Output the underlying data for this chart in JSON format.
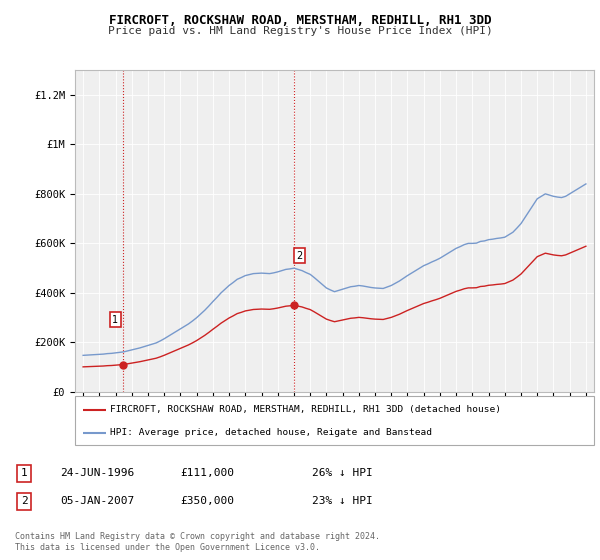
{
  "title": "FIRCROFT, ROCKSHAW ROAD, MERSTHAM, REDHILL, RH1 3DD",
  "subtitle": "Price paid vs. HM Land Registry's House Price Index (HPI)",
  "ylabel_ticks": [
    "£0",
    "£200K",
    "£400K",
    "£600K",
    "£800K",
    "£1M",
    "£1.2M"
  ],
  "ytick_values": [
    0,
    200000,
    400000,
    600000,
    800000,
    1000000,
    1200000
  ],
  "ylim": [
    0,
    1300000
  ],
  "xlim_start": 1993.5,
  "xlim_end": 2025.5,
  "hpi_line_color": "#7799cc",
  "price_line_color": "#cc2222",
  "dashed_line_color": "#cc2222",
  "background_color": "#ffffff",
  "plot_bg_color": "#efefef",
  "grid_color": "#ffffff",
  "sale1_x": 1996.48,
  "sale1_y": 111000,
  "sale2_x": 2007.02,
  "sale2_y": 350000,
  "legend_red_label": "FIRCROFT, ROCKSHAW ROAD, MERSTHAM, REDHILL, RH1 3DD (detached house)",
  "legend_blue_label": "HPI: Average price, detached house, Reigate and Banstead",
  "annotation1_label": "1",
  "annotation2_label": "2",
  "note1_date": "24-JUN-1996",
  "note1_price": "£111,000",
  "note1_hpi": "26% ↓ HPI",
  "note2_date": "05-JAN-2007",
  "note2_price": "£350,000",
  "note2_hpi": "23% ↓ HPI",
  "copyright_text": "Contains HM Land Registry data © Crown copyright and database right 2024.\nThis data is licensed under the Open Government Licence v3.0.",
  "hpi_data_x": [
    1994,
    1994.25,
    1994.5,
    1994.75,
    1995,
    1995.25,
    1995.5,
    1995.75,
    1996,
    1996.25,
    1996.5,
    1996.75,
    1997,
    1997.25,
    1997.5,
    1997.75,
    1998,
    1998.25,
    1998.5,
    1998.75,
    1999,
    1999.25,
    1999.5,
    1999.75,
    2000,
    2000.25,
    2000.5,
    2000.75,
    2001,
    2001.25,
    2001.5,
    2001.75,
    2002,
    2002.25,
    2002.5,
    2002.75,
    2003,
    2003.25,
    2003.5,
    2003.75,
    2004,
    2004.25,
    2004.5,
    2004.75,
    2005,
    2005.25,
    2005.5,
    2005.75,
    2006,
    2006.25,
    2006.5,
    2006.75,
    2007,
    2007.25,
    2007.5,
    2007.75,
    2008,
    2008.25,
    2008.5,
    2008.75,
    2009,
    2009.25,
    2009.5,
    2009.75,
    2010,
    2010.25,
    2010.5,
    2010.75,
    2011,
    2011.25,
    2011.5,
    2011.75,
    2012,
    2012.25,
    2012.5,
    2012.75,
    2013,
    2013.25,
    2013.5,
    2013.75,
    2014,
    2014.25,
    2014.5,
    2014.75,
    2015,
    2015.25,
    2015.5,
    2015.75,
    2016,
    2016.25,
    2016.5,
    2016.75,
    2017,
    2017.25,
    2017.5,
    2017.75,
    2018,
    2018.25,
    2018.5,
    2018.75,
    2019,
    2019.25,
    2019.5,
    2019.75,
    2020,
    2020.25,
    2020.5,
    2020.75,
    2021,
    2021.25,
    2021.5,
    2021.75,
    2022,
    2022.25,
    2022.5,
    2022.75,
    2023,
    2023.25,
    2023.5,
    2023.75,
    2024,
    2024.25,
    2024.5,
    2024.75,
    2025
  ],
  "hpi_data_y": [
    148000,
    149000,
    150000,
    151000,
    152000,
    153000,
    155000,
    156000,
    158000,
    160000,
    162000,
    166000,
    170000,
    174000,
    178000,
    183000,
    188000,
    193000,
    198000,
    206000,
    215000,
    225000,
    235000,
    245000,
    255000,
    265000,
    275000,
    287000,
    300000,
    315000,
    330000,
    347000,
    365000,
    382000,
    400000,
    415000,
    430000,
    442000,
    455000,
    462000,
    470000,
    474000,
    478000,
    479000,
    480000,
    479000,
    478000,
    481000,
    485000,
    490000,
    495000,
    497000,
    500000,
    495000,
    490000,
    482000,
    475000,
    462000,
    448000,
    434000,
    420000,
    412000,
    405000,
    410000,
    415000,
    420000,
    425000,
    427000,
    430000,
    428000,
    425000,
    422000,
    420000,
    419000,
    418000,
    424000,
    430000,
    439000,
    448000,
    459000,
    470000,
    480000,
    490000,
    500000,
    510000,
    517000,
    525000,
    532000,
    540000,
    550000,
    560000,
    570000,
    580000,
    587000,
    595000,
    600000,
    600000,
    601000,
    608000,
    610000,
    615000,
    617000,
    620000,
    622000,
    625000,
    635000,
    645000,
    662000,
    680000,
    705000,
    730000,
    755000,
    780000,
    790000,
    800000,
    795000,
    790000,
    787000,
    785000,
    790000,
    800000,
    810000,
    820000,
    830000,
    840000
  ],
  "price_data_x": [
    1996.48,
    2007.02
  ],
  "price_data_y": [
    111000,
    350000
  ],
  "price_hpi_ratio1": 0.74,
  "price_hpi_ratio2": 0.77
}
